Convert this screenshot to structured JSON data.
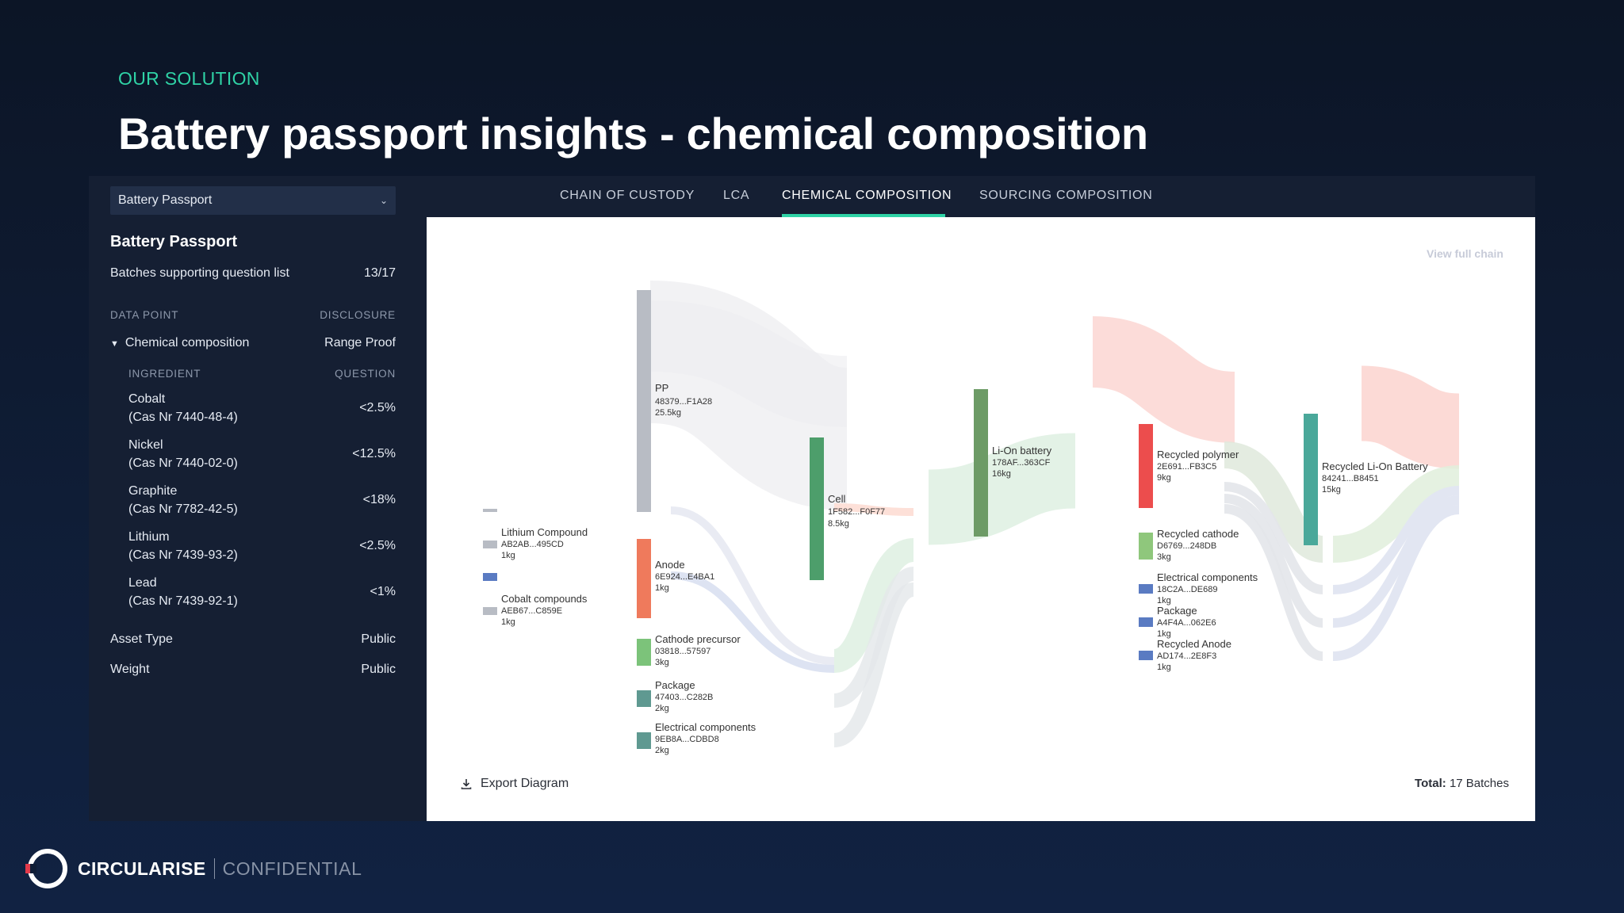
{
  "slide": {
    "eyebrow": "OUR SOLUTION",
    "title": "Battery passport insights - chemical composition"
  },
  "sidebar": {
    "dropdown_value": "Battery Passport",
    "title": "Battery Passport",
    "batches_label": "Batches supporting question list",
    "batches_value": "13/17",
    "col_data_point": "DATA POINT",
    "col_disclosure": "DISCLOSURE",
    "group_label": "Chemical composition",
    "group_value": "Range Proof",
    "col_ingredient": "INGREDIENT",
    "col_question": "QUESTION",
    "ingredients": [
      {
        "name": "Cobalt",
        "cas": "(Cas Nr 7440-48-4)",
        "value": "<2.5%"
      },
      {
        "name": "Nickel",
        "cas": "(Cas Nr 7440-02-0)",
        "value": "<12.5%"
      },
      {
        "name": "Graphite",
        "cas": "(Cas Nr 7782-42-5)",
        "value": "<18%"
      },
      {
        "name": "Lithium",
        "cas": "(Cas Nr 7439-93-2)",
        "value": "<2.5%"
      },
      {
        "name": "Lead",
        "cas": "(Cas Nr 7439-92-1)",
        "value": "<1%"
      }
    ],
    "asset_type_label": "Asset Type",
    "asset_type_value": "Public",
    "weight_label": "Weight",
    "weight_value": "Public"
  },
  "tabs": [
    "CHAIN OF CUSTODY",
    "LCA",
    "CHEMICAL COMPOSITION",
    "SOURCING COMPOSITION"
  ],
  "active_tab": "CHEMICAL COMPOSITION",
  "panel": {
    "view_chain": "View full chain",
    "export_label": "Export Diagram",
    "total_label": "Total:",
    "total_value": "17 Batches"
  },
  "sankey": {
    "nodes": [
      {
        "name": "Lithium Compound",
        "id": "AB2AB...495CD",
        "weight": "1kg",
        "color": "#b8bcc4"
      },
      {
        "name": "Cobalt compounds",
        "id": "AEB67...C859E",
        "weight": "1kg",
        "color": "#b8bcc4"
      },
      {
        "name": "PP",
        "id": "48379...F1A28",
        "weight": "25.5kg",
        "color": "#b8bcc4"
      },
      {
        "name": "Anode",
        "id": "6E924...E4BA1",
        "weight": "1kg",
        "color": "#ef7a5c"
      },
      {
        "name": "Cathode precursor",
        "id": "03818...57597",
        "weight": "3kg",
        "color": "#7cc37a"
      },
      {
        "name": "Package",
        "id": "47403...C282B",
        "weight": "2kg",
        "color": "#5f9991"
      },
      {
        "name": "Electrical components",
        "id": "9EB8A...CDBD8",
        "weight": "2kg",
        "color": "#5f9991"
      },
      {
        "name": "Cell",
        "id": "1F582...F0F77",
        "weight": "8.5kg",
        "color": "#4d9e6b"
      },
      {
        "name": "Li-On battery",
        "id": "178AF...363CF",
        "weight": "16kg",
        "color": "#6d9b66"
      },
      {
        "name": "Recycled polymer",
        "id": "2E691...FB3C5",
        "weight": "9kg",
        "color": "#ec4d4d"
      },
      {
        "name": "Recycled cathode",
        "id": "D6769...248DB",
        "weight": "3kg",
        "color": "#8fc77c"
      },
      {
        "name": "Electrical components",
        "id": "18C2A...DE689",
        "weight": "1kg",
        "color": "#5a7bc2"
      },
      {
        "name": "Package",
        "id": "A4F4A...062E6",
        "weight": "1kg",
        "color": "#5a7bc2"
      },
      {
        "name": "Recycled Anode",
        "id": "AD174...2E8F3",
        "weight": "1kg",
        "color": "#5a7bc2"
      },
      {
        "name": "Recycled Li-On Battery",
        "id": "84241...B8451",
        "weight": "15kg",
        "color": "#4aa89a"
      }
    ]
  },
  "footer": {
    "brand": "CIRCULARISE",
    "confidential": "CONFIDENTIAL"
  }
}
